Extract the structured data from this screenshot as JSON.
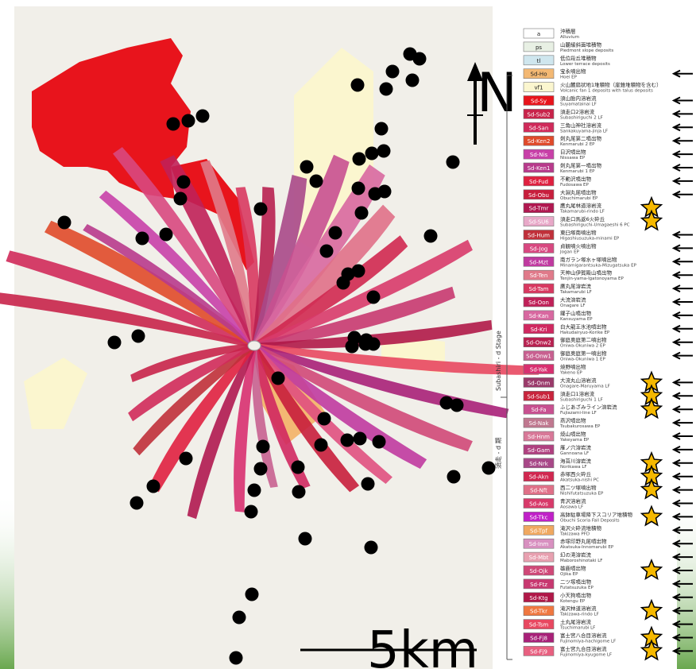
{
  "map": {
    "north_label": "N",
    "scale_label": "5km",
    "stage_label_en": "Subashiri - d Stage",
    "stage_label_jp": "須走 - d 期",
    "legend": [
      {
        "code": "a",
        "jp": "沖積層",
        "en": "Alluvium",
        "color": "#ffffff"
      },
      {
        "code": "ps",
        "jp": "山麓緩斜面堆積物",
        "en": "Piedmont slope deposits",
        "color": "#e8f0e4"
      },
      {
        "code": "tl",
        "jp": "低位段丘堆積物",
        "en": "Lower terrace deposits",
        "color": "#cfe6ee"
      },
      {
        "code": "Sd-Ho",
        "jp": "宝永噴出物",
        "en": "Hoei EP",
        "color": "#f3b873"
      },
      {
        "code": "vf1",
        "jp": "火山麓扇状地1堆積物（崖錐堆積物を含む）",
        "en": "Volcanic fan 1 deposits with talus deposits",
        "color": "#fbf6cf"
      },
      {
        "code": "Sd-Sy",
        "jp": "須山胎内溶岩流",
        "en": "Suyamatainai LF",
        "color": "#e8141c"
      },
      {
        "code": "Sd-Sub2",
        "jp": "須走口2溶岩流",
        "en": "Subashiriguchi 2 LF",
        "color": "#c8234a"
      },
      {
        "code": "Sd-San",
        "jp": "三角山神社溶岩流",
        "en": "Sankakuyama-jinja LF",
        "color": "#d02a5a"
      },
      {
        "code": "Sd-Ken2",
        "jp": "剣丸尾第二噴出物",
        "en": "Kenmarubi 2 EP",
        "color": "#e04a2a"
      },
      {
        "code": "Sd-Nis",
        "jp": "日沢噴出物",
        "en": "Nissawa EP",
        "color": "#c840a8"
      },
      {
        "code": "Sd-Ken1",
        "jp": "剣丸尾第一噴出物",
        "en": "Kenmarubi 1 EP",
        "color": "#b83a8c"
      },
      {
        "code": "Sd-Fud",
        "jp": "不動沢噴出物",
        "en": "Fudosawa EP",
        "color": "#e02040"
      },
      {
        "code": "Sd-Obu",
        "jp": "大淵丸尾噴出物",
        "en": "Obuchimarubi EP",
        "color": "#c81e3c"
      },
      {
        "code": "Sd-Tmr",
        "jp": "鷹丸尾林道溶岩流",
        "en": "Takamarubi-rindo LF",
        "color": "#b01850"
      },
      {
        "code": "Sd-SU6",
        "jp": "須走口馬返6火砕丘",
        "en": "Subashiriguchi-Umagaeshi 6 PC",
        "color": "#e8a8c8"
      },
      {
        "code": "Sd-Hum",
        "jp": "東臼塚南噴出物",
        "en": "Higashiusuzuka-minami EP",
        "color": "#c0303a"
      },
      {
        "code": "Sd-Jog",
        "jp": "貞観噴火噴出物",
        "en": "Jogan EP",
        "color": "#d84880"
      },
      {
        "code": "Sd-Mzt",
        "jp": "南ガラン塚水ヶ塚噴出物",
        "en": "Minamigarantsuka-Mizugatsuka EP",
        "color": "#c03aa0"
      },
      {
        "code": "Sd-Ten",
        "jp": "天神山伊賀殿山噴出物",
        "en": "Tenjin-yama-Igatonoyama EP",
        "color": "#e07a8a"
      },
      {
        "code": "Sd-Tam",
        "jp": "鷹丸尾溶岩流",
        "en": "Takamarubi LF",
        "color": "#d83860"
      },
      {
        "code": "Sd-Oon",
        "jp": "大流溶岩流",
        "en": "Onagare LF",
        "color": "#c02058"
      },
      {
        "code": "Sd-Kan",
        "jp": "鑵子山噴出物",
        "en": "Kansuyama EP",
        "color": "#d868a0"
      },
      {
        "code": "Sd-Kri",
        "jp": "白大龍王氷池噴出物",
        "en": "Hakudairyuo-Korike EP",
        "color": "#d02860"
      },
      {
        "code": "Sd-Onw2",
        "jp": "御庭奥庭第二噴出物",
        "en": "Oniwa-Okuniwa 2 EP",
        "color": "#b82050"
      },
      {
        "code": "Sd-Onw1",
        "jp": "御庭奥庭第一噴出物",
        "en": "Oniwa-Okuniwa 1 EP",
        "color": "#c86090"
      },
      {
        "code": "Sd-Yak",
        "jp": "焼野噴出物",
        "en": "Yakeno EP",
        "color": "#d83070"
      },
      {
        "code": "Sd-Onm",
        "jp": "大流丸山溶岩流",
        "en": "Onagare-Maruyama LF",
        "color": "#9a3a6a"
      },
      {
        "code": "Sd-Sub1",
        "jp": "須走口1溶岩流",
        "en": "Subashiriguchi 1 LF",
        "color": "#c8243c"
      },
      {
        "code": "Sd-Fa",
        "jp": "ふじあざみライン溶岩流",
        "en": "Fujiazami-line LF",
        "color": "#c85090"
      },
      {
        "code": "Sd-Nak",
        "jp": "燕沢噴出物",
        "en": "Tsubakurosawa EP",
        "color": "#c07890"
      },
      {
        "code": "Sd-Hnm",
        "jp": "焼山噴出物",
        "en": "Yakeyama EP",
        "color": "#d87898"
      },
      {
        "code": "Sd-Gam",
        "jp": "雁ノ穴溶岩流",
        "en": "Gannoana LF",
        "color": "#b04080"
      },
      {
        "code": "Sd-Nrk",
        "jp": "海苔川溶岩流",
        "en": "Norikawa LF",
        "color": "#a84888"
      },
      {
        "code": "Sd-Akn",
        "jp": "赤塚西火砕丘",
        "en": "Akatsuka-nishi PC",
        "color": "#d02850"
      },
      {
        "code": "Sd-Nft",
        "jp": "西二ツ塚噴出物",
        "en": "Nishifutatsuzuka EP",
        "color": "#e07088"
      },
      {
        "code": "Sd-Aos",
        "jp": "青沢溶岩流",
        "en": "Aosawa LF",
        "color": "#d83a6a"
      },
      {
        "code": "Sd-Tkc",
        "jp": "高鉢駐車場降下スコリア堆積物",
        "en": "Obuchi Scoria Fall Deposits",
        "color": "#c020c8"
      },
      {
        "code": "Sd-Tpf",
        "jp": "滝沢火砕流堆積物",
        "en": "Takizawa PFD",
        "color": "#f0a860"
      },
      {
        "code": "Sd-Inm",
        "jp": "赤塚印野丸尾噴出物",
        "en": "Akatsuka-Innomarubi EP",
        "color": "#d890c0"
      },
      {
        "code": "Sd-Mbt",
        "jp": "幻の滝溶岩流",
        "en": "Maboroshinotaki LF",
        "color": "#e8a0b0"
      },
      {
        "code": "Sd-Ojk",
        "jp": "雄鹿噴出物",
        "en": "Ojika EP",
        "color": "#d04878"
      },
      {
        "code": "Sd-Ftz",
        "jp": "二ツ塚噴出物",
        "en": "Futatsuzuka EP",
        "color": "#c83870"
      },
      {
        "code": "Sd-Ktg",
        "jp": "小天狗噴出物",
        "en": "Kotengu EP",
        "color": "#b01848"
      },
      {
        "code": "Sd-Tkr",
        "jp": "滝沢林道溶岩流",
        "en": "Takizawa-rindo LF",
        "color": "#f07840"
      },
      {
        "code": "Sd-Tsm",
        "jp": "土丸尾溶岩流",
        "en": "Tsuchimarubi LF",
        "color": "#e84860"
      },
      {
        "code": "Sd-Fj8",
        "jp": "富士宮八合目溶岩流",
        "en": "Fujinomiya-hachigome LF",
        "color": "#a82078"
      },
      {
        "code": "Sd-Fj9",
        "jp": "富士宮九合目溶岩流",
        "en": "Fujinomiya-kyugome LF",
        "color": "#e86080"
      }
    ]
  }
}
